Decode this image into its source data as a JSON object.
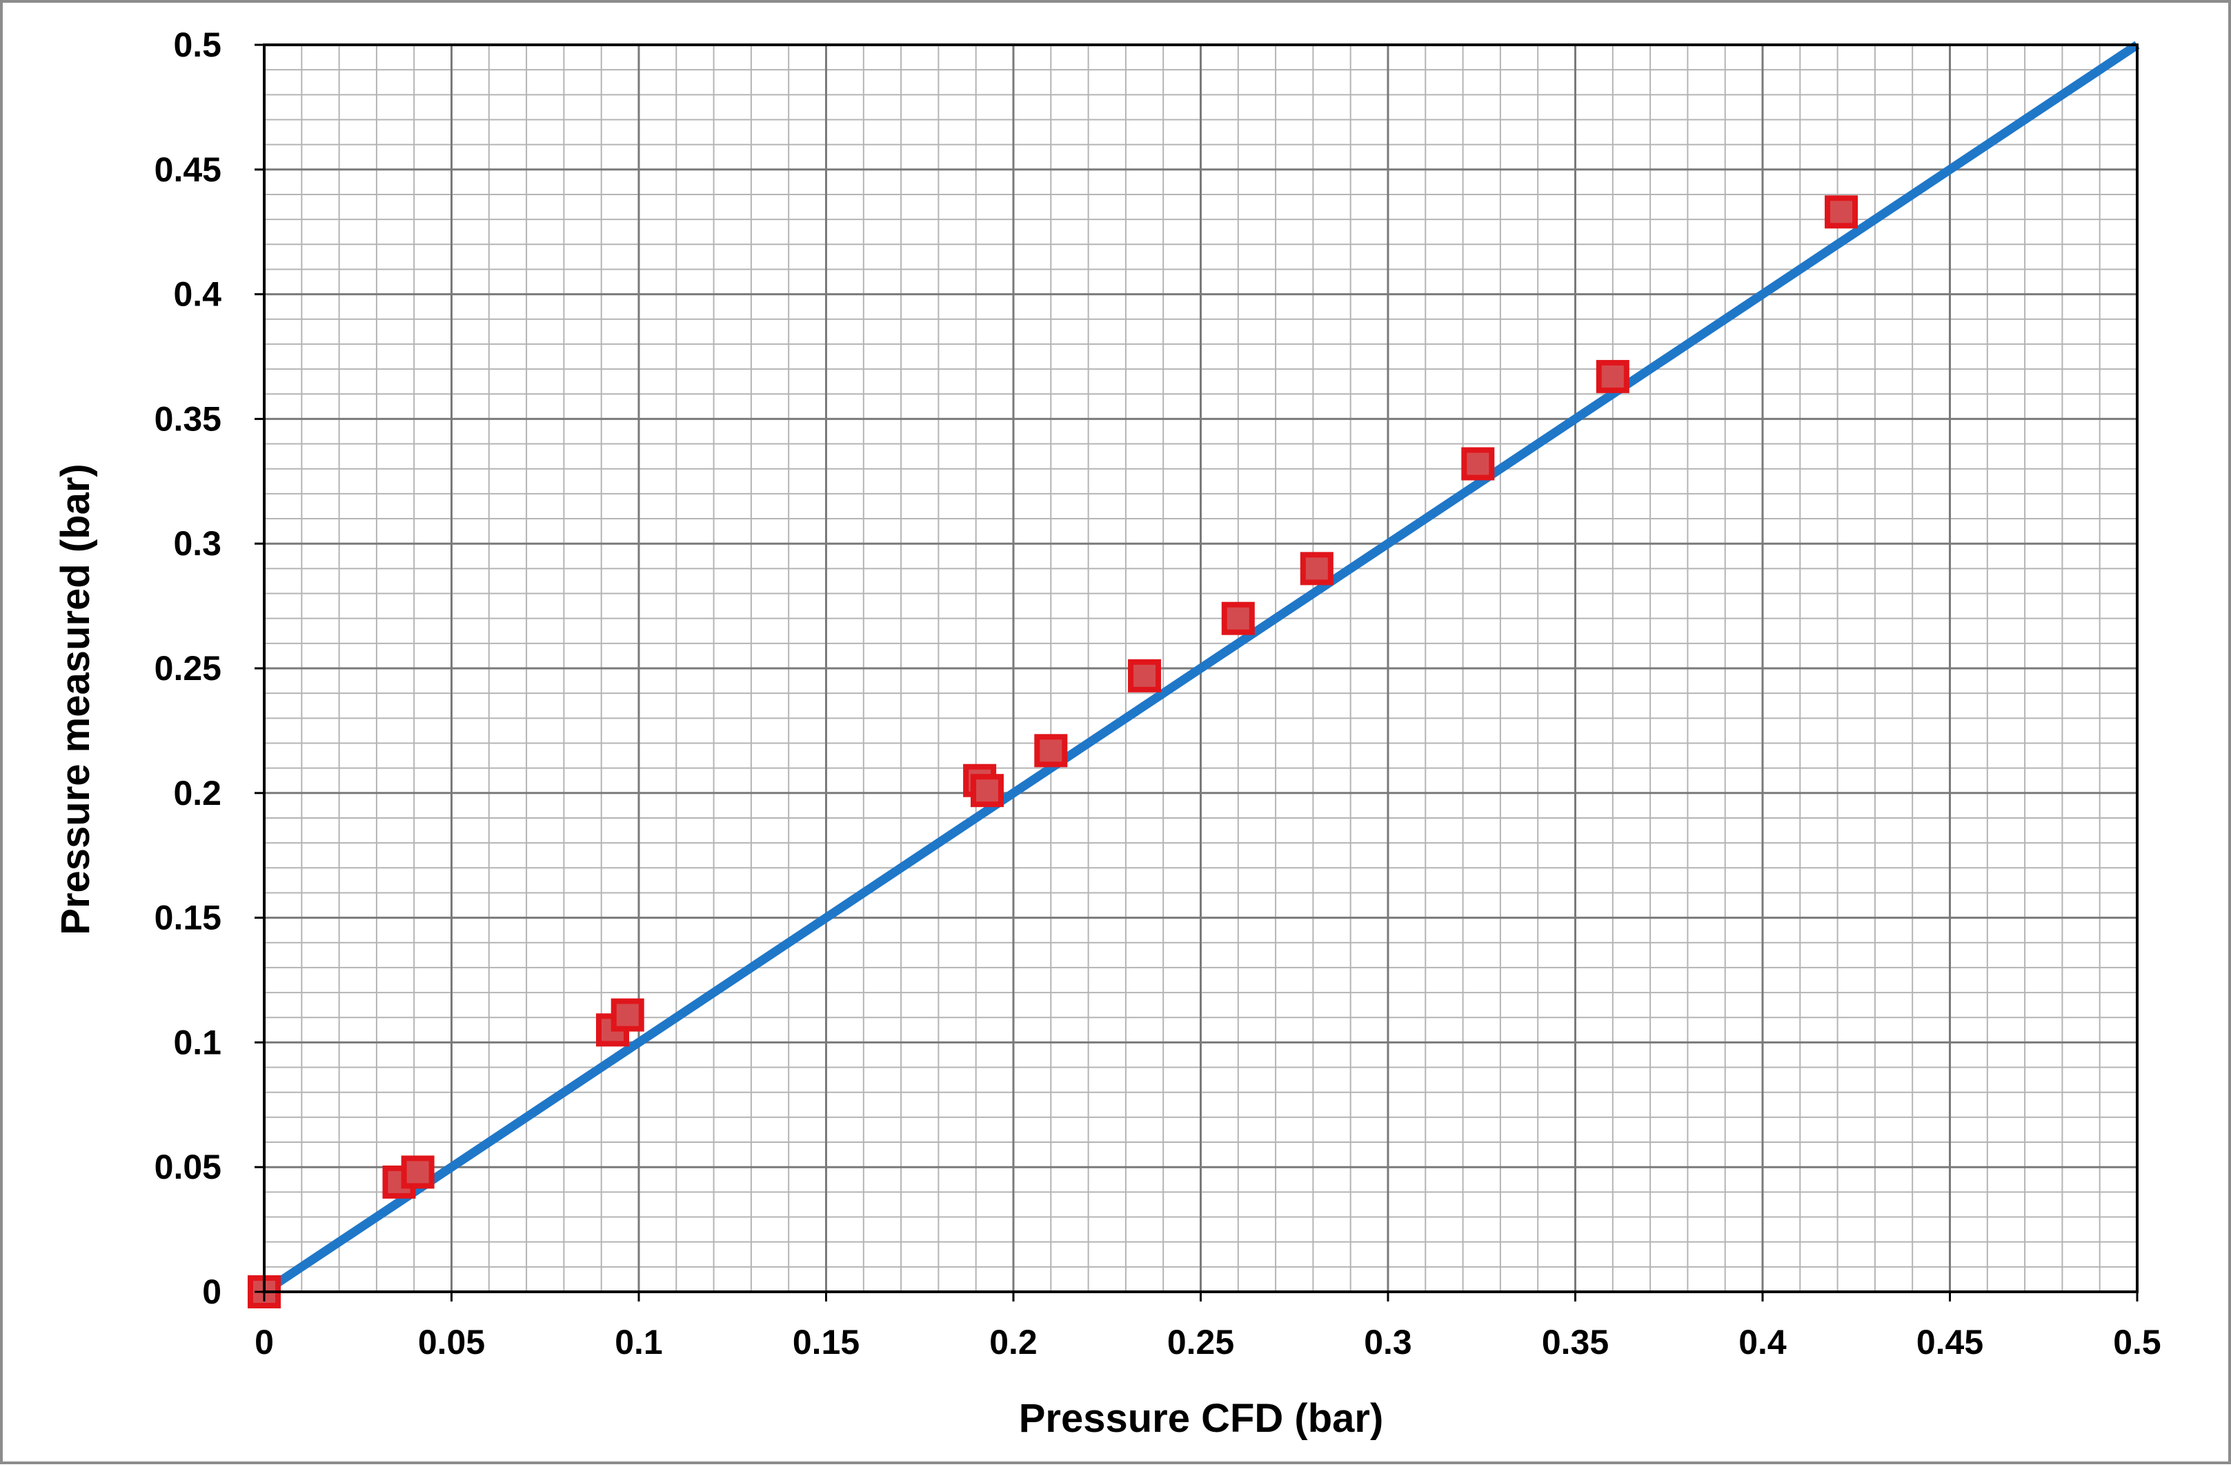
{
  "chart_data": {
    "type": "scatter",
    "xlabel": "Pressure CFD (bar)",
    "ylabel": "Pressure measured (bar)",
    "xlim": [
      0,
      0.5
    ],
    "ylim": [
      0,
      0.5
    ],
    "x_ticks": [
      "0",
      "0.05",
      "0.1",
      "0.15",
      "0.2",
      "0.25",
      "0.3",
      "0.35",
      "0.4",
      "0.45",
      "0.5"
    ],
    "y_ticks": [
      "0",
      "0.05",
      "0.1",
      "0.15",
      "0.2",
      "0.25",
      "0.3",
      "0.35",
      "0.4",
      "0.45",
      "0.5"
    ],
    "major_step": 0.05,
    "minor_step": 0.01,
    "grid": true,
    "legend": "none",
    "series": [
      {
        "type": "scatter",
        "marker": "square",
        "color": "#e0151b",
        "fill": "#d44b4f",
        "points": [
          {
            "x": 0.0,
            "y": 0.0
          },
          {
            "x": 0.036,
            "y": 0.044
          },
          {
            "x": 0.041,
            "y": 0.048
          },
          {
            "x": 0.093,
            "y": 0.105
          },
          {
            "x": 0.097,
            "y": 0.111
          },
          {
            "x": 0.191,
            "y": 0.205
          },
          {
            "x": 0.193,
            "y": 0.201
          },
          {
            "x": 0.21,
            "y": 0.217
          },
          {
            "x": 0.235,
            "y": 0.247
          },
          {
            "x": 0.26,
            "y": 0.27
          },
          {
            "x": 0.281,
            "y": 0.29
          },
          {
            "x": 0.324,
            "y": 0.332
          },
          {
            "x": 0.36,
            "y": 0.367
          },
          {
            "x": 0.421,
            "y": 0.433
          }
        ]
      },
      {
        "type": "line",
        "color": "#1f77c8",
        "points": [
          {
            "x": 0.0,
            "y": 0.0
          },
          {
            "x": 0.5,
            "y": 0.5
          }
        ]
      }
    ]
  }
}
